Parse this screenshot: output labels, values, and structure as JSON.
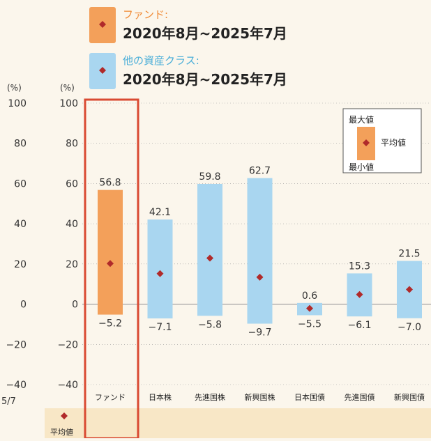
{
  "legend": [
    {
      "name": "ファンド:",
      "period": "2020年8月~2025年7月",
      "color": "#f3a05a",
      "label_color": "#f08a34"
    },
    {
      "name": "他の資産クラス:",
      "period": "2020年8月~2025年7月",
      "color": "#a9d6f0",
      "label_color": "#4aaed8"
    }
  ],
  "inset_legend": {
    "max_label": "最大値",
    "avg_label": "平均値",
    "min_label": "最小値"
  },
  "avg_row_label": "平均値",
  "left_axis": {
    "unit": "(%)",
    "ticks": [
      "100",
      "80",
      "60",
      "40",
      "20",
      "0",
      "−20",
      "−40"
    ],
    "date_fragment": "5/7"
  },
  "colors": {
    "fund": "#f3a05a",
    "other": "#a9d6f0",
    "marker": "#b02a2a",
    "highlight_box": "#d94a32",
    "avg_row_bg": "#f8e7c6",
    "grid": "#999999"
  },
  "chart_data": {
    "type": "bar",
    "yunit": "(%)",
    "ylim": [
      -40,
      100
    ],
    "yticks": [
      100,
      80,
      60,
      40,
      20,
      0,
      -20,
      -40
    ],
    "ytick_labels": [
      "100",
      "80",
      "60",
      "40",
      "20",
      "0",
      "−20",
      "−40"
    ],
    "categories": [
      "ファンド",
      "日本株",
      "先進国株",
      "新興国株",
      "日本国債",
      "先進国債",
      "新興国債"
    ],
    "max": [
      56.8,
      42.1,
      59.8,
      62.7,
      0.6,
      15.3,
      21.5
    ],
    "min": [
      -5.2,
      -7.1,
      -5.8,
      -9.7,
      -5.5,
      -6.1,
      -7.0
    ],
    "avg": [
      20.2,
      15.2,
      22.9,
      13.4,
      -2.1,
      4.8,
      7.3
    ],
    "max_labels": [
      "56.8",
      "42.1",
      "59.8",
      "62.7",
      "0.6",
      "15.3",
      "21.5"
    ],
    "min_labels": [
      "−5.2",
      "−7.1",
      "−5.8",
      "−9.7",
      "−5.5",
      "−6.1",
      "−7.0"
    ],
    "avg_labels": [
      "20.2%",
      "15.2%",
      "22.9%",
      "13.4%",
      "−2.1%",
      "4.8%",
      "7.3%"
    ]
  }
}
